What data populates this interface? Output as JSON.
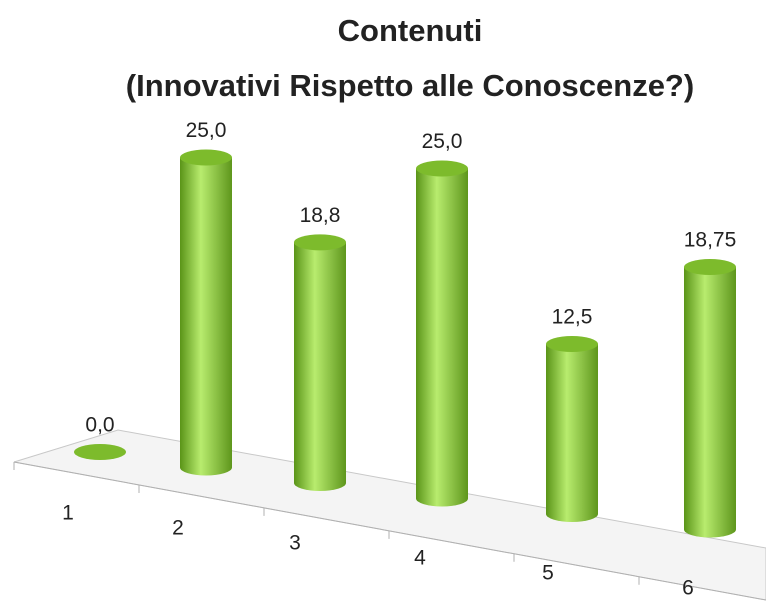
{
  "chart_data": {
    "type": "bar3d",
    "title": "Contenuti",
    "subtitle": "(Innovativi Rispetto alle Conoscenze?)",
    "categories": [
      "1",
      "2",
      "3",
      "4",
      "5",
      "6"
    ],
    "values": [
      0,
      25,
      18.8,
      25,
      12.5,
      18.75
    ],
    "value_labels": [
      "0,0",
      "25,0",
      "18,8",
      "25,0",
      "12,5",
      "18,75"
    ],
    "color": "#7dbb2c"
  }
}
